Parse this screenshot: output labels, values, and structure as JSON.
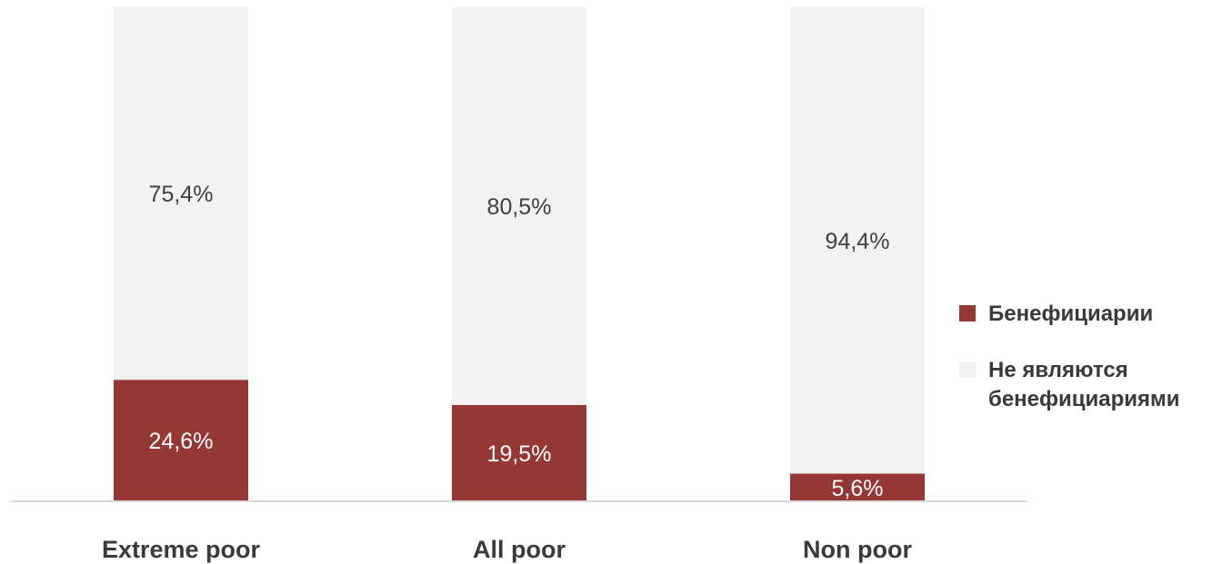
{
  "colors": {
    "beneficiaries": "#953735",
    "non_beneficiaries": "#f2f2f2",
    "axis": "#d9d9d9",
    "label_on_dark": "#ffffff",
    "label_on_light": "#404040",
    "category_label": "#3a3a3a"
  },
  "chart_data": {
    "type": "bar",
    "stacked": true,
    "categories": [
      "Extreme poor",
      "All poor",
      "Non poor"
    ],
    "series": [
      {
        "name": "Бенефициарии",
        "values": [
          24.6,
          19.5,
          5.6
        ],
        "labels": [
          "24,6%",
          "19,5%",
          "5,6%"
        ]
      },
      {
        "name": "Не являются бенефициариями",
        "values": [
          75.4,
          80.5,
          94.4
        ],
        "labels": [
          "75,4%",
          "80,5%",
          "94,4%"
        ]
      }
    ],
    "ylim": [
      0,
      100
    ],
    "grid": false,
    "legend_position": "right"
  },
  "legend": {
    "items": [
      {
        "label": "Бенефициарии"
      },
      {
        "label": "Не являются бенефициариями"
      }
    ]
  }
}
